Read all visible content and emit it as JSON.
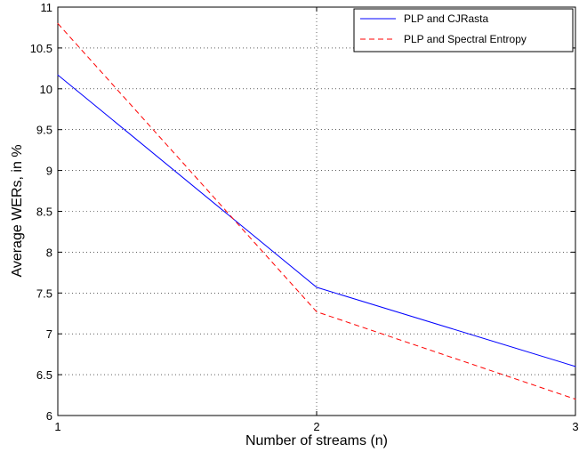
{
  "chart_data": {
    "type": "line",
    "title": "",
    "xlabel": "Number of streams (n)",
    "ylabel": "Average WERs, in %",
    "x": [
      1,
      2,
      3
    ],
    "xlim": [
      1,
      3
    ],
    "ylim": [
      6,
      11
    ],
    "xticks": [
      "1",
      "2",
      "3"
    ],
    "yticks": [
      "6",
      "6.5",
      "7",
      "7.5",
      "8",
      "8.5",
      "9",
      "9.5",
      "10",
      "10.5",
      "11"
    ],
    "grid": true,
    "legend_position": "top-right",
    "series": [
      {
        "name": "PLP and CJRasta",
        "values": [
          10.17,
          7.57,
          6.6
        ],
        "color": "#0000ff",
        "style": "solid"
      },
      {
        "name": "PLP and Spectral Entropy",
        "values": [
          10.8,
          7.27,
          6.2
        ],
        "color": "#ff0000",
        "style": "dashed"
      }
    ]
  }
}
